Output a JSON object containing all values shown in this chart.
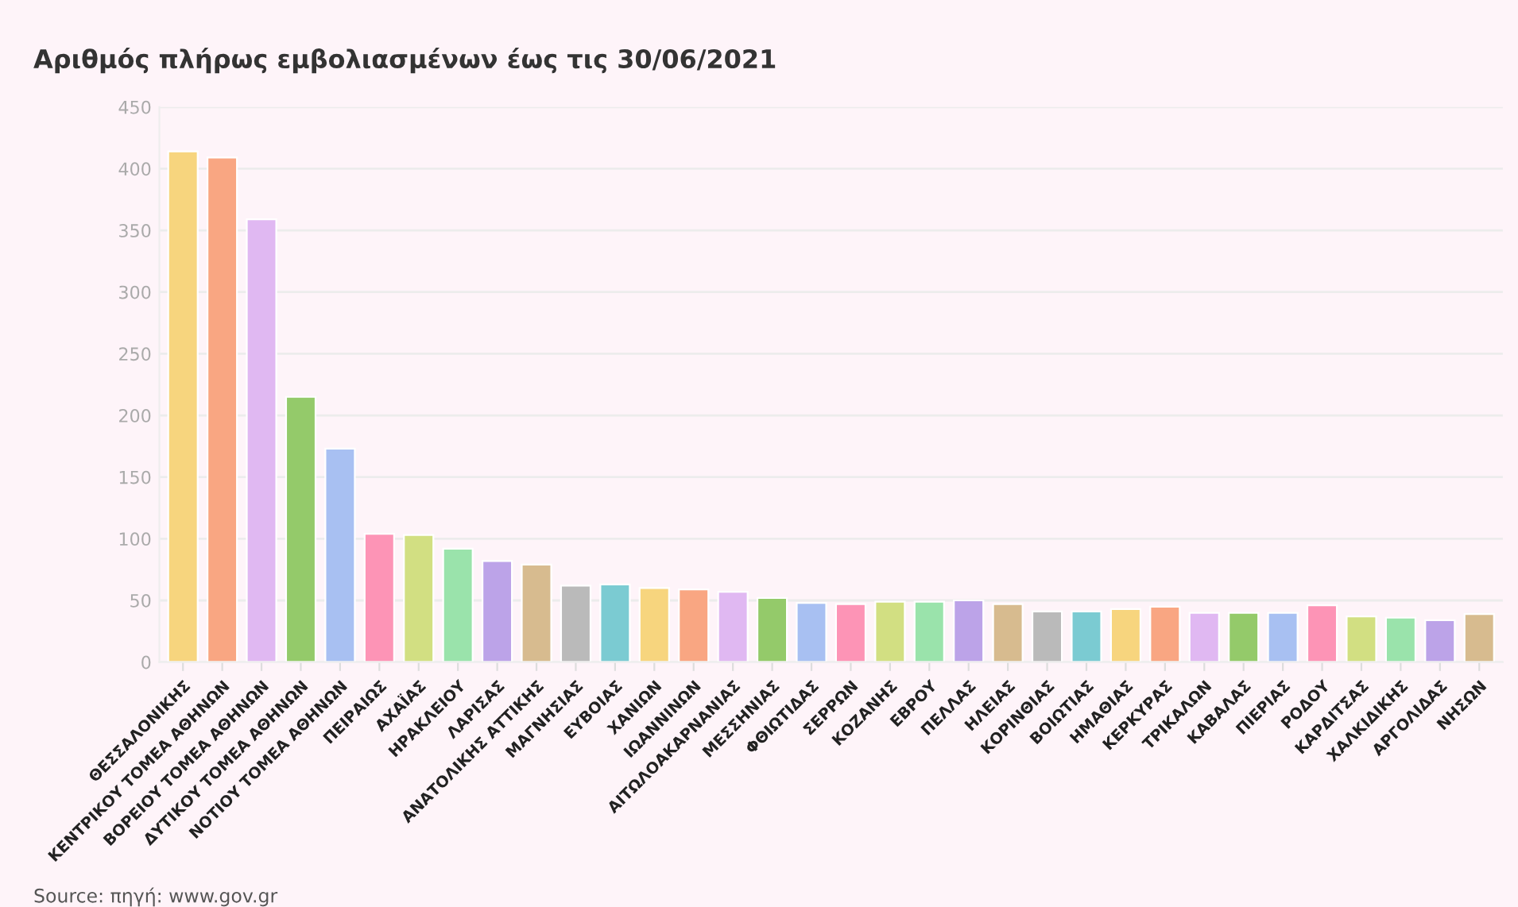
{
  "chart_data": {
    "type": "bar",
    "title": "Αριθμός πλήρως εμβολιασμένων έως τις 30/06/2021",
    "categories": [
      "ΘΕΣΣΑΛΟΝΙΚΗΣ",
      "ΚΕΝΤΡΙΚΟΥ ΤΟΜΕΑ ΑΘΗΝΩΝ",
      "ΒΟΡΕΙΟΥ ΤΟΜΕΑ ΑΘΗΝΩΝ",
      "ΔΥΤΙΚΟΥ ΤΟΜΕΑ ΑΘΗΝΩΝ",
      "ΝΟΤΙΟΥ ΤΟΜΕΑ ΑΘΗΝΩΝ",
      "ΠΕΙΡΑΙΩΣ",
      "ΑΧΑΪΑΣ",
      "ΗΡΑΚΛΕΙΟΥ",
      "ΛΑΡΙΣΑΣ",
      "ΑΝΑΤΟΛΙΚΗΣ ΑΤΤΙΚΗΣ",
      "ΜΑΓΝΗΣΙΑΣ",
      "ΕΥΒΟΙΑΣ",
      "ΧΑΝΙΩΝ",
      "ΙΩΑΝΝΙΝΩΝ",
      "ΑΙΤΩΛΟΑΚΑΡΝΑΝΙΑΣ",
      "ΜΕΣΣΗΝΙΑΣ",
      "ΦΘΙΩΤΙΔΑΣ",
      "ΣΕΡΡΩΝ",
      "ΚΟΖΑΝΗΣ",
      "ΕΒΡΟΥ",
      "ΠΕΛΛΑΣ",
      "ΗΛΕΙΑΣ",
      "ΚΟΡΙΝΘΙΑΣ",
      "ΒΟΙΩΤΙΑΣ",
      "ΗΜΑΘΙΑΣ",
      "ΚΕΡΚΥΡΑΣ",
      "ΤΡΙΚΑΛΩΝ",
      "ΚΑΒΑΛΑΣ",
      "ΠΙΕΡΙΑΣ",
      "ΡΟΔΟΥ",
      "ΚΑΡΔΙΤΣΑΣ",
      "ΧΑΛΚΙΔΙΚΗΣ",
      "ΑΡΓΟΛΙΔΑΣ",
      "ΝΗΣΩΝ"
    ],
    "values": [
      414,
      409,
      359,
      215,
      173,
      104,
      103,
      92,
      82,
      79,
      62,
      63,
      60,
      59,
      57,
      52,
      48,
      47,
      49,
      49,
      50,
      47,
      41,
      41,
      43,
      45,
      40,
      40,
      40,
      46,
      37,
      36,
      34,
      39
    ],
    "colors": [
      "#f7d57e",
      "#f9a682",
      "#e0b8f2",
      "#94ca6a",
      "#a8c0f2",
      "#fd94b6",
      "#d2df82",
      "#9ae3ab",
      "#bca3e8",
      "#d7bb8f",
      "#bababa",
      "#7bcbd2",
      "#f7d57e",
      "#f9a682",
      "#e0b8f2",
      "#94ca6a",
      "#a8c0f2",
      "#fd94b6",
      "#d2df82",
      "#9ae3ab",
      "#bca3e8",
      "#d7bb8f",
      "#bababa",
      "#7bcbd2",
      "#f7d57e",
      "#f9a682",
      "#e0b8f2",
      "#94ca6a",
      "#a8c0f2",
      "#fd94b6",
      "#d2df82",
      "#9ae3ab",
      "#bca3e8",
      "#d7bb8f"
    ],
    "ylim": [
      0,
      450
    ],
    "yticks": [
      0,
      50,
      100,
      150,
      200,
      250,
      300,
      350,
      400,
      450
    ],
    "grid": "y",
    "annotations": [
      "Source: πηγή: www.gov.gr"
    ]
  }
}
